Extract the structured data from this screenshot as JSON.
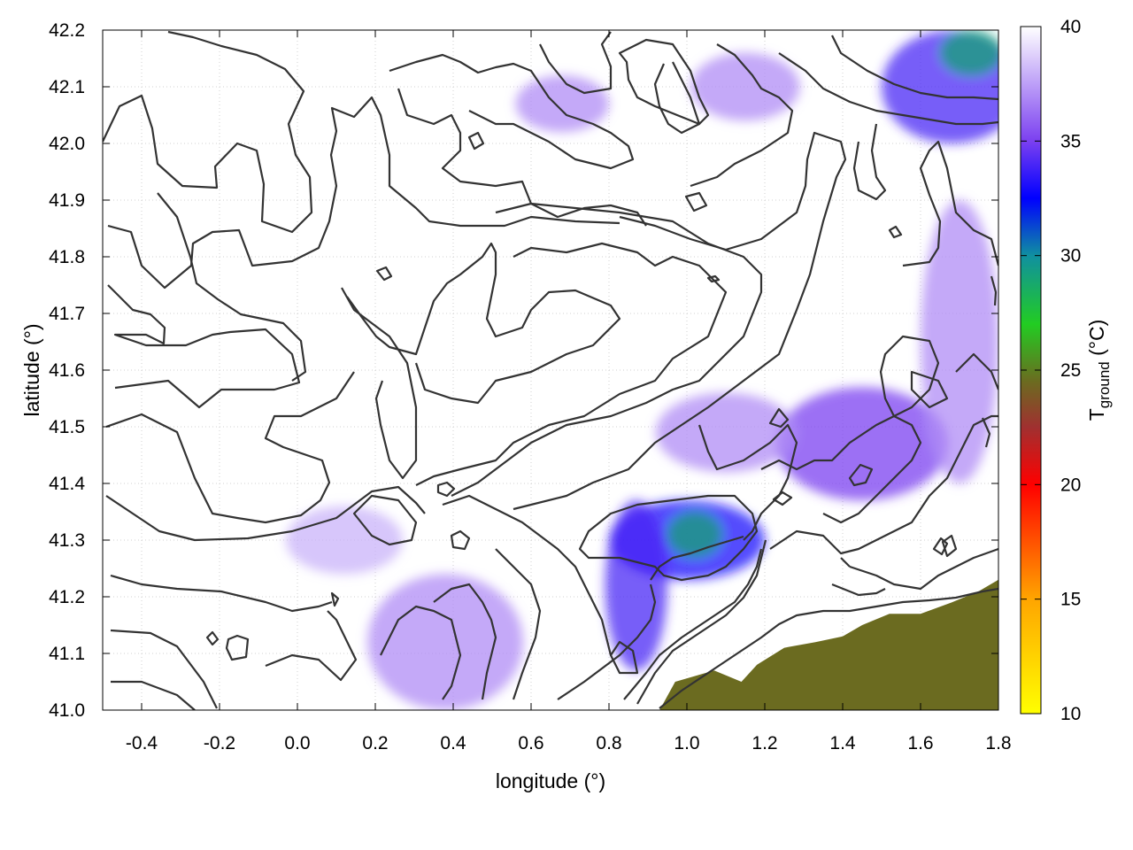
{
  "chart_data": {
    "type": "heatmap",
    "title": "",
    "xlabel": "longitude (°)",
    "ylabel": "latitude (°)",
    "xlim": [
      -0.5,
      1.8
    ],
    "ylim": [
      41.0,
      42.2
    ],
    "x_ticks": [
      -0.4,
      -0.2,
      0.0,
      0.2,
      0.4,
      0.6,
      0.8,
      1.0,
      1.2,
      1.4,
      1.6,
      1.8
    ],
    "x_tick_labels": [
      "-0.4",
      "-0.2",
      "0.0",
      "0.2",
      "0.4",
      "0.6",
      "0.8",
      "1.0",
      "1.2",
      "1.4",
      "1.6",
      "1.8"
    ],
    "y_ticks": [
      41.0,
      41.1,
      41.2,
      41.3,
      41.4,
      41.5,
      41.6,
      41.7,
      41.8,
      41.9,
      42.0,
      42.1,
      42.2
    ],
    "y_tick_labels": [
      "41.0",
      "41.1",
      "41.2",
      "41.3",
      "41.4",
      "41.5",
      "41.6",
      "41.7",
      "41.8",
      "41.9",
      "42.0",
      "42.1",
      "42.2"
    ],
    "grid": true,
    "colorbar": {
      "label_main": "T",
      "label_sub": "ground",
      "label_unit": " (°C)",
      "range": [
        10,
        40
      ],
      "ticks": [
        10,
        15,
        20,
        25,
        30,
        35,
        40
      ],
      "tick_labels": [
        "10",
        "15",
        "20",
        "25",
        "30",
        "35",
        "40"
      ],
      "stops": [
        {
          "value": 10,
          "color": "#ffff00"
        },
        {
          "value": 15,
          "color": "#ffa500"
        },
        {
          "value": 20,
          "color": "#ff0000"
        },
        {
          "value": 22.5,
          "color": "#a03030"
        },
        {
          "value": 24.5,
          "color": "#6b6b20"
        },
        {
          "value": 27,
          "color": "#22cc22"
        },
        {
          "value": 30,
          "color": "#1090a0"
        },
        {
          "value": 32.5,
          "color": "#0000ff"
        },
        {
          "value": 35,
          "color": "#7b40f0"
        },
        {
          "value": 40,
          "color": "#ffffff"
        }
      ]
    },
    "sea_color": "#6b6b20",
    "sea_polygon": [
      [
        0.93,
        41.0
      ],
      [
        0.97,
        41.05
      ],
      [
        1.02,
        41.06
      ],
      [
        1.07,
        41.07
      ],
      [
        1.14,
        41.05
      ],
      [
        1.18,
        41.08
      ],
      [
        1.25,
        41.11
      ],
      [
        1.33,
        41.12
      ],
      [
        1.4,
        41.13
      ],
      [
        1.45,
        41.15
      ],
      [
        1.52,
        41.17
      ],
      [
        1.6,
        41.17
      ],
      [
        1.68,
        41.19
      ],
      [
        1.75,
        41.21
      ],
      [
        1.8,
        41.23
      ],
      [
        1.8,
        41.0
      ]
    ],
    "warm_patches": [
      {
        "lon": 1.0,
        "lat": 41.3,
        "rlon": 0.2,
        "rlat": 0.07,
        "temp": 33
      },
      {
        "lon": 0.87,
        "lat": 41.22,
        "rlon": 0.08,
        "rlat": 0.15,
        "temp": 34
      },
      {
        "lon": 1.02,
        "lat": 41.31,
        "rlon": 0.07,
        "rlat": 0.04,
        "temp": 29
      },
      {
        "lon": 1.45,
        "lat": 41.47,
        "rlon": 0.22,
        "rlat": 0.1,
        "temp": 35
      },
      {
        "lon": 1.1,
        "lat": 41.49,
        "rlon": 0.18,
        "rlat": 0.07,
        "temp": 37
      },
      {
        "lon": 1.68,
        "lat": 42.1,
        "rlon": 0.18,
        "rlat": 0.1,
        "temp": 34
      },
      {
        "lon": 1.73,
        "lat": 42.16,
        "rlon": 0.08,
        "rlat": 0.04,
        "temp": 29
      },
      {
        "lon": 0.38,
        "lat": 41.12,
        "rlon": 0.2,
        "rlat": 0.12,
        "temp": 37
      },
      {
        "lon": 0.68,
        "lat": 42.07,
        "rlon": 0.12,
        "rlat": 0.05,
        "temp": 37
      },
      {
        "lon": 1.15,
        "lat": 42.1,
        "rlon": 0.14,
        "rlat": 0.06,
        "temp": 37
      },
      {
        "lon": 1.7,
        "lat": 41.65,
        "rlon": 0.1,
        "rlat": 0.25,
        "temp": 37
      },
      {
        "lon": 0.12,
        "lat": 41.3,
        "rlon": 0.15,
        "rlat": 0.06,
        "temp": 38
      }
    ]
  }
}
